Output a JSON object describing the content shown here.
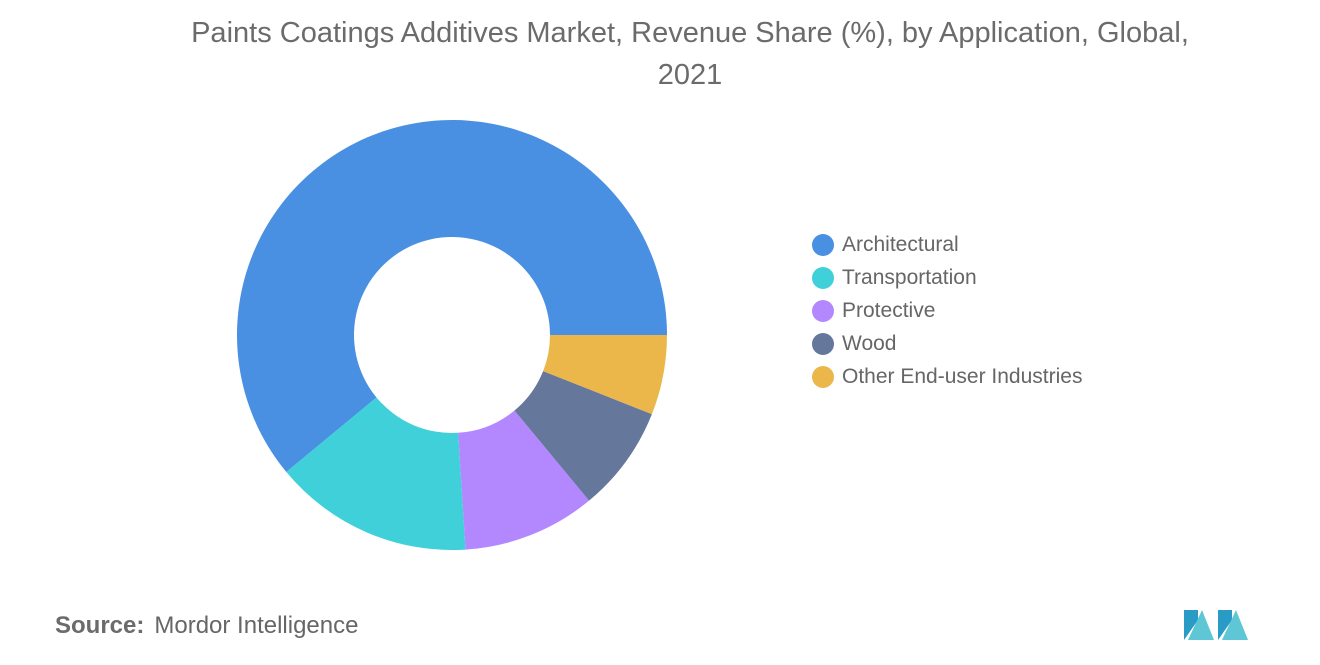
{
  "title_lines": [
    "Paints Coatings Additives Market, Revenue Share (%), by Application, Global,",
    "2021"
  ],
  "chart_data": {
    "type": "pie",
    "title": "Paints Coatings Additives Market, Revenue Share (%), by Application, Global, 2021",
    "categories": [
      "Architectural",
      "Transportation",
      "Protective",
      "Wood",
      "Other End-user Industries"
    ],
    "values": [
      61,
      15,
      10,
      8,
      6
    ],
    "colors": [
      "#4a90e2",
      "#3fd0d9",
      "#b388ff",
      "#65779b",
      "#ebb74a"
    ],
    "donut": true,
    "legend_position": "right"
  },
  "source": {
    "label": "Source:",
    "value": "Mordor Intelligence"
  }
}
